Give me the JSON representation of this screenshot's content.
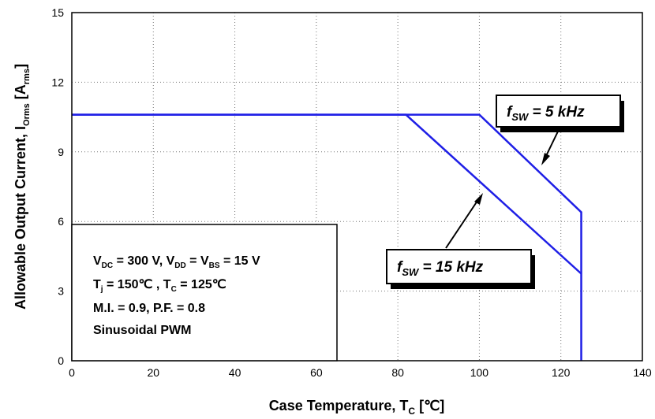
{
  "chart_data": {
    "type": "line",
    "title": "",
    "xlabel": "Case Temperature, T",
    "xlabel_sub": "C",
    "xlabel_unit": " [℃]",
    "ylabel": "Allowable Output Current, I",
    "ylabel_sub": "Orms",
    "ylabel_unit_open": " [A",
    "ylabel_unit_sub": "rms",
    "ylabel_unit_close": "]",
    "xlim": [
      0,
      140
    ],
    "ylim": [
      0,
      15
    ],
    "xticks": [
      0,
      20,
      40,
      60,
      80,
      100,
      120,
      140
    ],
    "yticks": [
      0,
      3,
      6,
      9,
      12,
      15
    ],
    "grid": "dotted",
    "line_color": "#1f1fe6",
    "series": [
      {
        "name": "f_sw = 5 kHz",
        "x": [
          0,
          100,
          125,
          125
        ],
        "y": [
          10.6,
          10.6,
          6.4,
          0
        ]
      },
      {
        "name": "f_sw = 15 kHz",
        "x": [
          0,
          82,
          125
        ],
        "y": [
          10.6,
          10.6,
          3.75
        ]
      }
    ],
    "callouts": [
      {
        "f": "f",
        "sub": "SW",
        "rest": " = 5 kHz"
      },
      {
        "f": "f",
        "sub": "SW",
        "rest": " = 15 kHz"
      }
    ],
    "conditions": {
      "line1": [
        {
          "t": "V"
        },
        {
          "t": "DC",
          "sub": true
        },
        {
          "t": " = 300 V, V"
        },
        {
          "t": "DD",
          "sub": true
        },
        {
          "t": " = V"
        },
        {
          "t": "BS",
          "sub": true
        },
        {
          "t": " = 15 V"
        }
      ],
      "line2": [
        {
          "t": "T"
        },
        {
          "t": "j",
          "sub": true
        },
        {
          "t": " = 150℃  , T"
        },
        {
          "t": "C",
          "sub": true
        },
        {
          "t": " = 125℃"
        }
      ],
      "line3": "M.I. = 0.9, P.F. = 0.8",
      "line4": "Sinusoidal PWM"
    }
  }
}
